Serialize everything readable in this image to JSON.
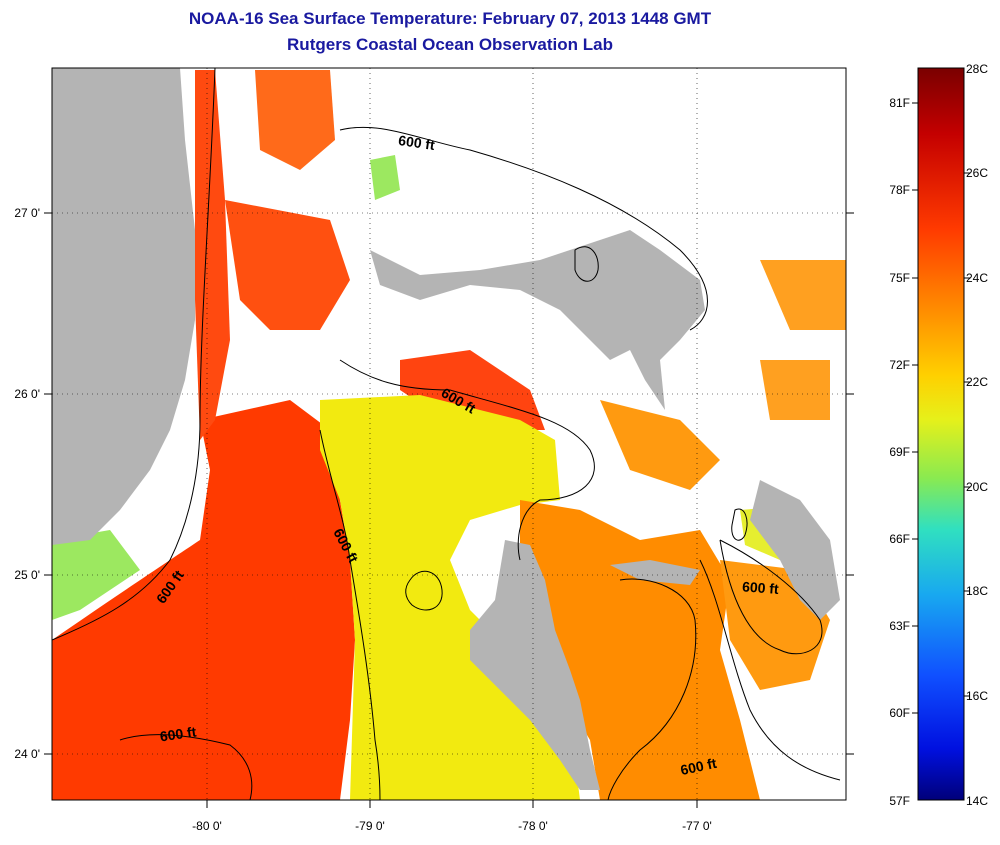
{
  "title": {
    "line1": "NOAA-16 Sea Surface Temperature:  February 07, 2013 1448 GMT",
    "line2": "Rutgers Coastal Ocean Observation Lab"
  },
  "axes": {
    "lon_labels": [
      "-80 0'",
      "-79 0'",
      "-78 0'",
      "-77 0'"
    ],
    "lat_labels": [
      "27 0'",
      "26 0'",
      "25 0'",
      "24 0'"
    ]
  },
  "colorbar": {
    "celsius": [
      "28C",
      "26C",
      "24C",
      "22C",
      "20C",
      "18C",
      "16C",
      "14C"
    ],
    "fahrenheit": [
      "81F",
      "78F",
      "75F",
      "72F",
      "69F",
      "66F",
      "63F",
      "60F",
      "57F"
    ],
    "colors": [
      "#7a0000",
      "#c40000",
      "#ff3a00",
      "#ff8c00",
      "#ffd000",
      "#e6f01a",
      "#8aea50",
      "#30e0c0",
      "#18a8f0",
      "#1050ff",
      "#0010e0",
      "#00007a"
    ]
  },
  "contours": {
    "label": "600 ft",
    "labels": [
      "600 ft",
      "600 ft",
      "600 ft",
      "600 ft",
      "600 ft",
      "600 ft"
    ]
  },
  "colors": {
    "land": "#b4b4b4",
    "cloud": "#ffffff",
    "warm_red": "#ff3300",
    "orange": "#ff8800",
    "yellow": "#f2ec10",
    "green": "#9ce860",
    "cyan": "#40d8c8",
    "title": "#1a1aa0"
  }
}
